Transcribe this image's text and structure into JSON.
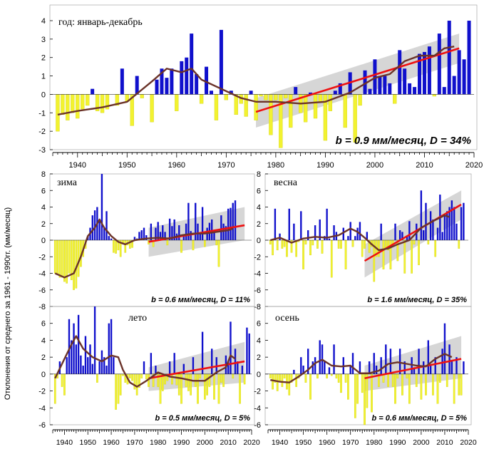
{
  "y_axis_label": "Отклонения от среднего за 1961 - 1990гг. (мм/месяц)",
  "colors": {
    "positive_bar": "#1010cc",
    "negative_bar": "#f2f230",
    "smooth_line": "#6b3329",
    "trend_line": "#ee1111",
    "confidence_band": "#cfcfcf",
    "axis": "#000000"
  },
  "chart_data": [
    {
      "id": "annual",
      "type": "bar",
      "title": "год: январь-декабрь",
      "stat_label": "b = 0.9 мм/месяц, D = 34%",
      "xlim": [
        1935,
        2020
      ],
      "ylim": [
        -3,
        4
      ],
      "yticks": [
        -3,
        -2,
        -1,
        0,
        1,
        2,
        3,
        4
      ],
      "xticks": [
        1940,
        1950,
        1960,
        1970,
        1980,
        1990,
        2000,
        2010,
        2020
      ],
      "start_year": 1936,
      "values": [
        -2.0,
        -1.1,
        -1.4,
        -1.0,
        -1.3,
        -0.8,
        -0.6,
        0.3,
        -0.9,
        -1.0,
        -0.8,
        0.0,
        -0.6,
        1.4,
        -0.4,
        -1.7,
        1.0,
        -0.2,
        0.0,
        -1.5,
        0.8,
        1.4,
        0.9,
        1.4,
        -0.9,
        1.8,
        2.0,
        3.3,
        1.1,
        -0.5,
        1.5,
        0.2,
        -1.4,
        3.5,
        -0.3,
        0.2,
        -1.1,
        -0.5,
        -1.2,
        0.2,
        -1.4,
        -0.1,
        -0.3,
        -2.2,
        -0.3,
        -2.9,
        -0.2,
        -1.8,
        0.4,
        -1.0,
        -1.5,
        0.1,
        -1.3,
        -0.4,
        -2.5,
        -0.9,
        0.2,
        0.6,
        -1.8,
        1.2,
        -2.6,
        -0.6,
        1.3,
        0.3,
        1.9,
        1.0,
        1.0,
        0.6,
        -0.5,
        2.4,
        1.4,
        0.6,
        0.4,
        2.2,
        2.3,
        2.6,
        -0.1,
        3.3,
        0.4,
        4.5,
        1.0,
        2.4,
        1.9,
        4.3
      ],
      "smooth": [
        [
          1936,
          -1.1
        ],
        [
          1940,
          -0.9
        ],
        [
          1945,
          -0.7
        ],
        [
          1950,
          -0.4
        ],
        [
          1955,
          0.7
        ],
        [
          1958,
          1.4
        ],
        [
          1961,
          1.2
        ],
        [
          1963,
          1.4
        ],
        [
          1965,
          0.8
        ],
        [
          1969,
          0.3
        ],
        [
          1973,
          -0.2
        ],
        [
          1976,
          -0.4
        ],
        [
          1980,
          -0.4
        ],
        [
          1985,
          -0.5
        ],
        [
          1990,
          -0.4
        ],
        [
          1995,
          0.1
        ],
        [
          2000,
          0.9
        ],
        [
          2003,
          1.1
        ],
        [
          2006,
          1.8
        ],
        [
          2009,
          2.1
        ],
        [
          2012,
          2.1
        ],
        [
          2014,
          2.5
        ],
        [
          2016,
          2.6
        ]
      ],
      "trend": [
        [
          1976,
          -0.95
        ],
        [
          2017,
          2.5
        ]
      ],
      "band_upper": [
        [
          1976,
          -0.2
        ],
        [
          2017,
          3.3
        ]
      ],
      "band_lower": [
        [
          1976,
          -1.8
        ],
        [
          2017,
          1.7
        ]
      ]
    },
    {
      "id": "winter",
      "type": "bar",
      "title": "зима",
      "stat_label": "b = 0.6 мм/месяц, D = 11%",
      "xlim": [
        1935,
        2020
      ],
      "ylim": [
        -8,
        8
      ],
      "yticks": [
        -8,
        -6,
        -4,
        -2,
        0,
        2,
        4,
        6,
        8
      ],
      "xticks": [
        1940,
        1950,
        1960,
        1970,
        1980,
        1990,
        2000,
        2010,
        2020
      ],
      "start_year": 1936,
      "values": [
        -4.0,
        -4.2,
        -4.5,
        -4.5,
        -5.0,
        -5.2,
        -4.0,
        -4.8,
        -6.0,
        -5.8,
        -4.4,
        -3.2,
        -2.0,
        -1.0,
        0.5,
        1.5,
        3.0,
        3.6,
        4.0,
        2.3,
        8.5,
        1.5,
        3.5,
        0.5,
        0.2,
        -1.5,
        -1.6,
        -1.2,
        -2.0,
        -0.5,
        -1.5,
        -0.6,
        -1.0,
        -0.9,
        0.4,
        0.2,
        1.0,
        1.2,
        1.5,
        0.6,
        -0.5,
        2.0,
        -0.8,
        1.5,
        2.2,
        1.0,
        1.8,
        1.0,
        -0.6,
        2.6,
        1.7,
        2.5,
        0.8,
        1.8,
        -1.5,
        0.6,
        2.0,
        4.5,
        1.1,
        -1.2,
        4.5,
        2.0,
        0.8,
        4.0,
        -0.8,
        1.5,
        2.1,
        2.5,
        1.0,
        -0.6,
        -3.2,
        3.0,
        2.0,
        1.7,
        3.8,
        3.9,
        4.5,
        4.8
      ],
      "smooth": [
        [
          1936,
          -4.0
        ],
        [
          1940,
          -4.5
        ],
        [
          1944,
          -4.0
        ],
        [
          1947,
          -2.0
        ],
        [
          1950,
          0.5
        ],
        [
          1953,
          1.5
        ],
        [
          1955,
          2.5
        ],
        [
          1957,
          1.5
        ],
        [
          1960,
          0.5
        ],
        [
          1963,
          -0.2
        ],
        [
          1966,
          -0.5
        ],
        [
          1970,
          0.0
        ],
        [
          1975,
          0.2
        ],
        [
          1980,
          0.3
        ],
        [
          1985,
          0.2
        ],
        [
          1990,
          0.6
        ],
        [
          1995,
          0.8
        ],
        [
          2000,
          0.8
        ],
        [
          2005,
          1.0
        ],
        [
          2010,
          1.2
        ],
        [
          2012,
          1.4
        ]
      ],
      "trend": [
        [
          1976,
          -0.2
        ],
        [
          2017,
          1.8
        ]
      ],
      "band_upper": [
        [
          1976,
          1.5
        ],
        [
          2017,
          4.0
        ]
      ],
      "band_lower": [
        [
          1976,
          -2.0
        ],
        [
          2017,
          0.0
        ]
      ]
    },
    {
      "id": "spring",
      "type": "bar",
      "title": "весна",
      "stat_label": "b = 1.6 мм/месяц, D = 35%",
      "xlim": [
        1935,
        2020
      ],
      "ylim": [
        -8,
        8
      ],
      "yticks": [
        -8,
        -6,
        -4,
        -2,
        0,
        2,
        4,
        6,
        8
      ],
      "xticks": [
        1940,
        1950,
        1960,
        1970,
        1980,
        1990,
        2000,
        2010,
        2020
      ],
      "start_year": 1936,
      "values": [
        -0.5,
        -1.8,
        3.8,
        -1.2,
        0.8,
        -1.0,
        -0.8,
        -2.0,
        3.8,
        -1.5,
        2.0,
        -2.0,
        -0.2,
        3.5,
        -3.5,
        -0.5,
        1.2,
        -1.8,
        -0.6,
        1.8,
        -1.0,
        2.5,
        -1.6,
        0.5,
        3.8,
        0.2,
        -4.5,
        1.8,
        1.0,
        -1.0,
        -1.0,
        1.5,
        -3.5,
        0.5,
        2.2,
        -0.8,
        0.5,
        1.5,
        2.2,
        -2.0,
        -1.0,
        1.0,
        -1.5,
        -0.8,
        -5.0,
        -2.0,
        -2.0,
        2.0,
        -3.5,
        -1.0,
        -1.2,
        -3.5,
        -0.5,
        2.0,
        -2.5,
        1.2,
        1.0,
        -4.0,
        0.5,
        2.3,
        -4.0,
        -0.5,
        2.0,
        -3.0,
        6.0,
        1.2,
        4.5,
        -0.5,
        3.5,
        2.5,
        -2.0,
        1.5,
        5.5,
        1.0,
        3.0,
        3.5,
        4.0,
        4.8,
        4.0,
        2.0,
        -1.0,
        4.0,
        4.5
      ],
      "smooth": [
        [
          1936,
          0.0
        ],
        [
          1940,
          0.3
        ],
        [
          1945,
          -0.3
        ],
        [
          1950,
          0.2
        ],
        [
          1955,
          0.4
        ],
        [
          1960,
          0.3
        ],
        [
          1965,
          0.6
        ],
        [
          1970,
          1.4
        ],
        [
          1973,
          1.0
        ],
        [
          1976,
          0.3
        ],
        [
          1979,
          -0.5
        ],
        [
          1982,
          -1.2
        ],
        [
          1986,
          -1.0
        ],
        [
          1990,
          -0.5
        ],
        [
          1995,
          0.0
        ],
        [
          2000,
          1.5
        ],
        [
          2005,
          2.3
        ],
        [
          2010,
          3.0
        ],
        [
          2012,
          2.8
        ]
      ],
      "trend": [
        [
          1976,
          -2.5
        ],
        [
          2017,
          4.3
        ]
      ],
      "band_upper": [
        [
          1976,
          -0.5
        ],
        [
          2017,
          6.0
        ]
      ],
      "band_lower": [
        [
          1976,
          -4.5
        ],
        [
          2017,
          2.5
        ]
      ]
    },
    {
      "id": "summer",
      "type": "bar",
      "title": "лето",
      "stat_label": "b = 0.5 мм/месяц, D = 5%",
      "xlim": [
        1935,
        2020
      ],
      "ylim": [
        -6,
        8
      ],
      "yticks": [
        -6,
        -4,
        -2,
        0,
        2,
        4,
        6
      ],
      "xticks": [
        1940,
        1950,
        1960,
        1970,
        1980,
        1990,
        2000,
        2010,
        2020
      ],
      "start_year": 1936,
      "values": [
        -3.5,
        -0.5,
        1.5,
        -1.5,
        -2.5,
        2.0,
        6.5,
        4.0,
        6.0,
        3.5,
        7.0,
        2.2,
        1.0,
        4.5,
        2.0,
        3.5,
        1.2,
        8.0,
        -1.0,
        1.5,
        2.8,
        2.0,
        1.0,
        6.0,
        6.5,
        2.0,
        -4.2,
        -3.5,
        -2.5,
        -0.2,
        -1.0,
        -1.2,
        -0.5,
        -0.8,
        -1.8,
        -2.5,
        -1.6,
        -0.5,
        1.5,
        -0.6,
        -1.5,
        2.5,
        -1.5,
        1.0,
        -1.5,
        -3.5,
        -2.0,
        -1.2,
        -0.8,
        1.5,
        -1.2,
        2.5,
        -1.3,
        -2.5,
        -3.5,
        1.2,
        -1.5,
        -2.0,
        -2.5,
        2.0,
        -1.5,
        -3.5,
        -0.5,
        5.0,
        -3.0,
        -2.5,
        -1.5,
        3.0,
        -3.0,
        2.0,
        -3.5,
        -1.0,
        -1.5,
        2.2,
        1.5,
        6.2,
        -0.5,
        3.0,
        1.5,
        -3.5,
        1.0,
        -1.2,
        5.5,
        4.8
      ],
      "smooth": [
        [
          1936,
          -0.5
        ],
        [
          1940,
          1.8
        ],
        [
          1943,
          3.5
        ],
        [
          1945,
          4.5
        ],
        [
          1948,
          3.0
        ],
        [
          1952,
          2.0
        ],
        [
          1956,
          1.5
        ],
        [
          1960,
          2.2
        ],
        [
          1963,
          2.0
        ],
        [
          1965,
          0.5
        ],
        [
          1968,
          -1.0
        ],
        [
          1971,
          -1.5
        ],
        [
          1975,
          -0.8
        ],
        [
          1980,
          0.2
        ],
        [
          1985,
          -0.3
        ],
        [
          1990,
          -0.5
        ],
        [
          1995,
          -0.8
        ],
        [
          2000,
          -0.8
        ],
        [
          2005,
          0.2
        ],
        [
          2009,
          0.8
        ],
        [
          2011,
          2.2
        ],
        [
          2013,
          1.8
        ]
      ],
      "trend": [
        [
          1976,
          -0.5
        ],
        [
          2017,
          1.5
        ]
      ],
      "band_upper": [
        [
          1976,
          0.8
        ],
        [
          2017,
          3.8
        ]
      ],
      "band_lower": [
        [
          1976,
          -2.0
        ],
        [
          2017,
          -1.0
        ]
      ]
    },
    {
      "id": "autumn",
      "type": "bar",
      "title": "осень",
      "stat_label": "b = 0.6 мм/месяц, D = 5%",
      "xlim": [
        1935,
        2020
      ],
      "ylim": [
        -6,
        8
      ],
      "yticks": [
        -6,
        -4,
        -2,
        0,
        2,
        4,
        6
      ],
      "xticks": [
        1940,
        1950,
        1960,
        1970,
        1980,
        1990,
        2000,
        2010,
        2020
      ],
      "start_year": 1936,
      "values": [
        -0.5,
        -1.8,
        -1.0,
        -2.0,
        -0.8,
        -1.5,
        -0.5,
        -1.8,
        -2.5,
        -1.0,
        0.5,
        -1.5,
        -0.5,
        2.0,
        1.0,
        -1.0,
        3.0,
        -3.0,
        1.5,
        2.0,
        -0.5,
        4.0,
        3.5,
        1.5,
        -0.5,
        0.8,
        -0.2,
        3.5,
        -0.5,
        -1.0,
        -2.2,
        2.0,
        -1.0,
        -3.0,
        1.0,
        2.5,
        -5.2,
        -3.5,
        1.5,
        -2.2,
        -6.5,
        -4.0,
        1.5,
        -4.5,
        2.5,
        1.0,
        -1.5,
        2.0,
        -1.0,
        3.5,
        -1.5,
        3.0,
        -1.5,
        -3.5,
        -0.5,
        3.0,
        -2.5,
        1.5,
        -0.5,
        -3.5,
        2.0,
        0.8,
        -1.5,
        3.0,
        -3.0,
        1.5,
        -2.5,
        4.0,
        1.0,
        -2.5,
        2.0,
        -3.5,
        -1.0,
        3.0,
        6.0,
        -1.5,
        3.5,
        1.5,
        -3.5,
        2.0,
        -2.5,
        -2.5,
        1.5
      ],
      "smooth": [
        [
          1936,
          -0.7
        ],
        [
          1940,
          -0.9
        ],
        [
          1944,
          -1.0
        ],
        [
          1948,
          -0.3
        ],
        [
          1952,
          0.5
        ],
        [
          1955,
          1.3
        ],
        [
          1958,
          1.7
        ],
        [
          1962,
          1.0
        ],
        [
          1966,
          0.9
        ],
        [
          1970,
          1.0
        ],
        [
          1974,
          0.1
        ],
        [
          1978,
          0.1
        ],
        [
          1982,
          0.4
        ],
        [
          1986,
          1.2
        ],
        [
          1990,
          1.4
        ],
        [
          1994,
          1.2
        ],
        [
          1998,
          1.0
        ],
        [
          2002,
          0.9
        ],
        [
          2006,
          1.8
        ],
        [
          2010,
          2.4
        ],
        [
          2013,
          2.0
        ]
      ],
      "trend": [
        [
          1976,
          -0.5
        ],
        [
          2017,
          1.8
        ]
      ],
      "band_upper": [
        [
          1976,
          1.0
        ],
        [
          2017,
          4.5
        ]
      ],
      "band_lower": [
        [
          1976,
          -2.0
        ],
        [
          2017,
          -0.5
        ]
      ]
    }
  ]
}
